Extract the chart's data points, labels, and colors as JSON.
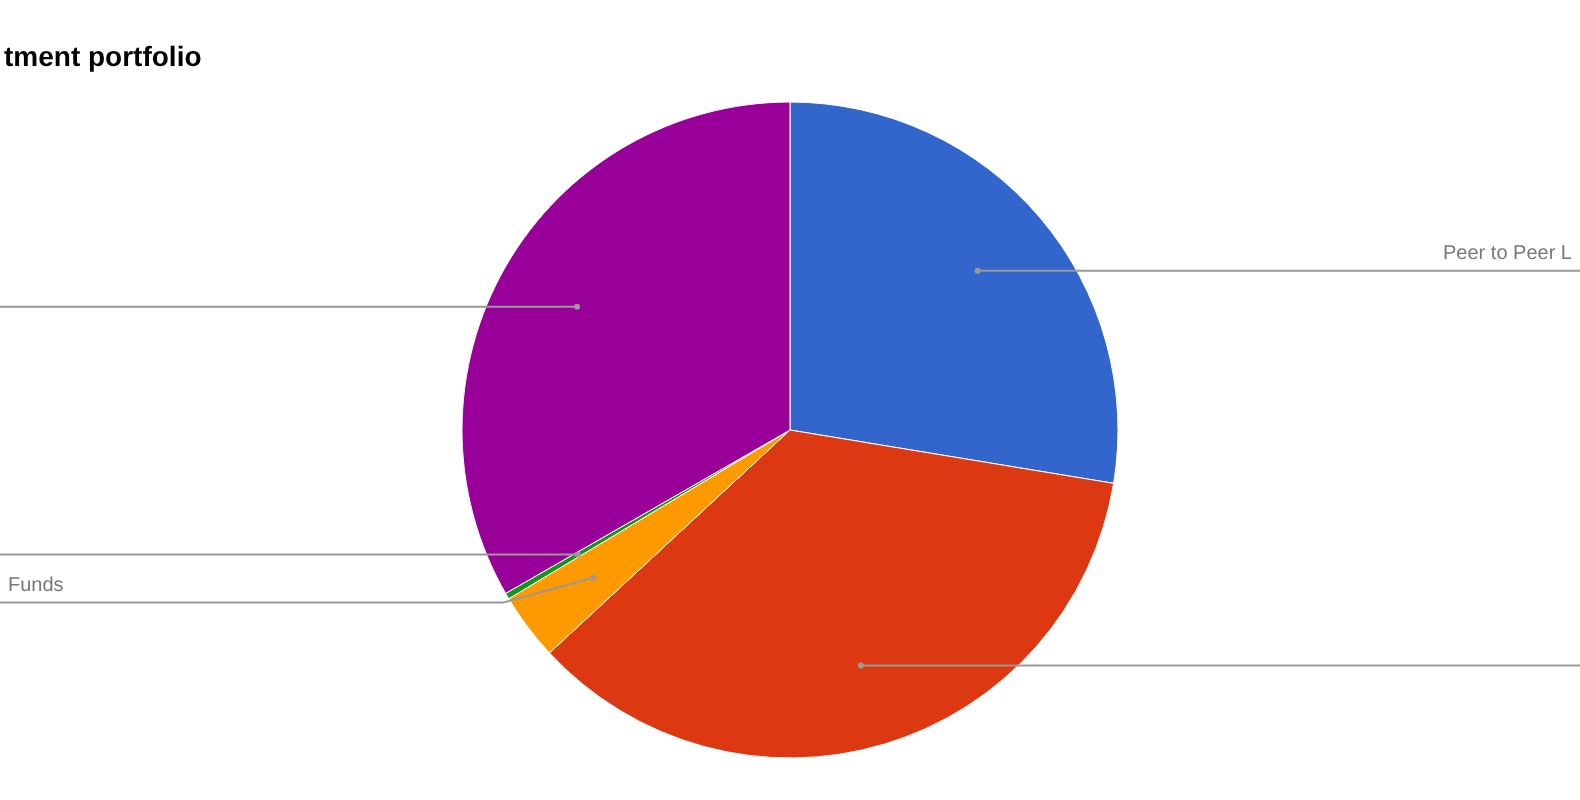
{
  "chart_data": {
    "type": "pie",
    "title": "tment portfolio",
    "categories": [
      "Peer to Peer L",
      null,
      "Funds",
      null,
      null
    ],
    "values": [
      27.6,
      35.5,
      3.3,
      0.3,
      33.3
    ],
    "colors": [
      "#3366cc",
      "#dc3912",
      "#ff9900",
      "#109618",
      "#990099"
    ],
    "legend": false
  }
}
